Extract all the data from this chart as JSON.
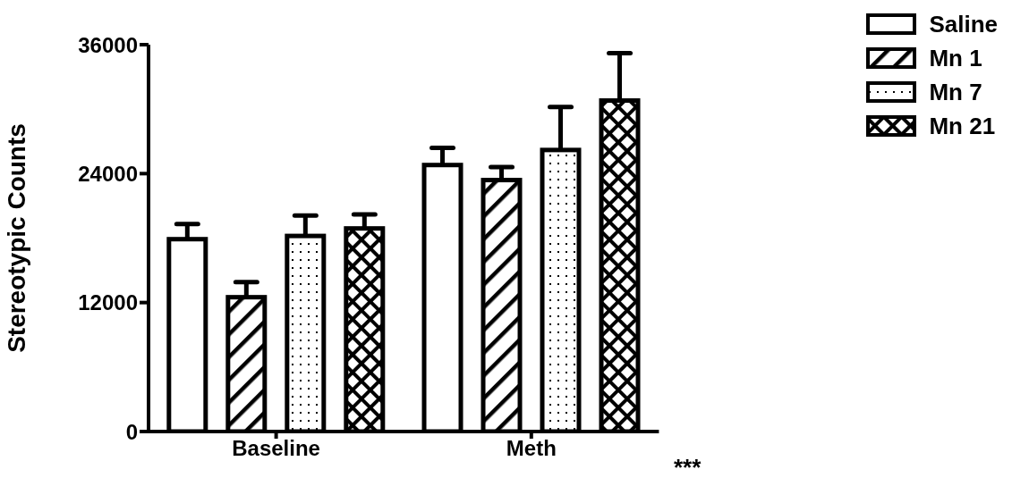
{
  "chart_data": {
    "type": "bar",
    "ylabel": "Stereotypic Counts",
    "categories": [
      "Baseline",
      "Meth"
    ],
    "series": [
      {
        "name": "Saline",
        "color": "#000000",
        "values": [
          17900,
          24800
        ],
        "errors": [
          1400,
          1600
        ]
      },
      {
        "name": "Mn 1",
        "color": "#000000",
        "values": [
          12500,
          23400
        ],
        "errors": [
          1400,
          1200
        ]
      },
      {
        "name": "Mn 7",
        "color": "#000000",
        "values": [
          18200,
          26200
        ],
        "errors": [
          1900,
          4000
        ]
      },
      {
        "name": "Mn 21",
        "color": "#000000",
        "values": [
          18900,
          30800
        ],
        "errors": [
          1300,
          4400
        ]
      }
    ],
    "ylim": [
      0,
      36000
    ],
    "yticks": [
      0,
      12000,
      24000,
      36000
    ],
    "legend": "top right",
    "annotations": [
      "***"
    ]
  }
}
